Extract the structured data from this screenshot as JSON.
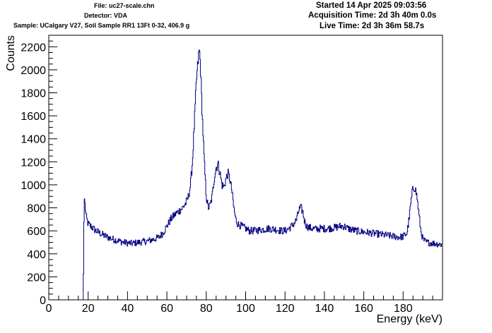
{
  "header": {
    "file": "File: uc27-scale.chn",
    "detector": "Detector: VDA",
    "sample": "Sample: UCalgary V27, Soil Sample RR1 13Ft 0-32, 406.9 g",
    "started": "Started 14 Apr 2025 09:03:56",
    "acquisition": "Acquisition Time: 2d 3h 40m 0.0s",
    "live": "Live Time: 2d 3h 36m 58.7s"
  },
  "chart_data": {
    "type": "line",
    "style": "histogram-step",
    "xlabel": "Energy (keV)",
    "ylabel": "Counts",
    "xlim": [
      0,
      200
    ],
    "ylim": [
      0,
      2300
    ],
    "xticks": [
      0,
      20,
      40,
      60,
      80,
      100,
      120,
      140,
      160,
      180
    ],
    "yticks": [
      0,
      200,
      400,
      600,
      800,
      1000,
      1200,
      1400,
      1600,
      1800,
      2000,
      2200
    ],
    "grid": false,
    "color": "#00007f",
    "series": [
      {
        "x": [
          17.5,
          18,
          19,
          20,
          22,
          24,
          26,
          28,
          30,
          32,
          34,
          36,
          38,
          40,
          42,
          44,
          46,
          48,
          50,
          52,
          54,
          56,
          58,
          60,
          62,
          64,
          66,
          68,
          70,
          71,
          72,
          73,
          74,
          75,
          76,
          76.5,
          77,
          78,
          79,
          80,
          81,
          82,
          83,
          84,
          85,
          86,
          87,
          88,
          89,
          90,
          91,
          92,
          93,
          94,
          95,
          96,
          98,
          100,
          102,
          104,
          106,
          108,
          110,
          112,
          114,
          116,
          118,
          120,
          122,
          124,
          126,
          127,
          128,
          129,
          130,
          131,
          132,
          134,
          136,
          138,
          140,
          142,
          144,
          146,
          148,
          150,
          152,
          154,
          156,
          158,
          160,
          162,
          164,
          166,
          168,
          170,
          172,
          174,
          176,
          178,
          180,
          182,
          183,
          184,
          185,
          186,
          187,
          188,
          189,
          190,
          191,
          192,
          194,
          196,
          198,
          200
        ],
        "y": [
          0,
          900,
          720,
          660,
          630,
          600,
          580,
          560,
          545,
          530,
          520,
          510,
          500,
          495,
          490,
          495,
          500,
          505,
          510,
          520,
          530,
          545,
          580,
          640,
          700,
          740,
          770,
          800,
          850,
          900,
          1000,
          1200,
          1550,
          1900,
          2100,
          2180,
          2050,
          1600,
          1200,
          900,
          800,
          820,
          900,
          1050,
          1150,
          1180,
          1100,
          1000,
          980,
          1050,
          1100,
          1050,
          950,
          800,
          700,
          660,
          640,
          620,
          600,
          600,
          605,
          610,
          615,
          620,
          615,
          610,
          600,
          600,
          620,
          650,
          700,
          780,
          800,
          770,
          680,
          640,
          630,
          620,
          615,
          620,
          620,
          620,
          625,
          630,
          640,
          640,
          620,
          610,
          600,
          595,
          590,
          585,
          580,
          575,
          570,
          565,
          560,
          555,
          550,
          545,
          550,
          580,
          700,
          850,
          970,
          980,
          900,
          750,
          600,
          530,
          510,
          500,
          495,
          490,
          485,
          480
        ]
      }
    ]
  }
}
